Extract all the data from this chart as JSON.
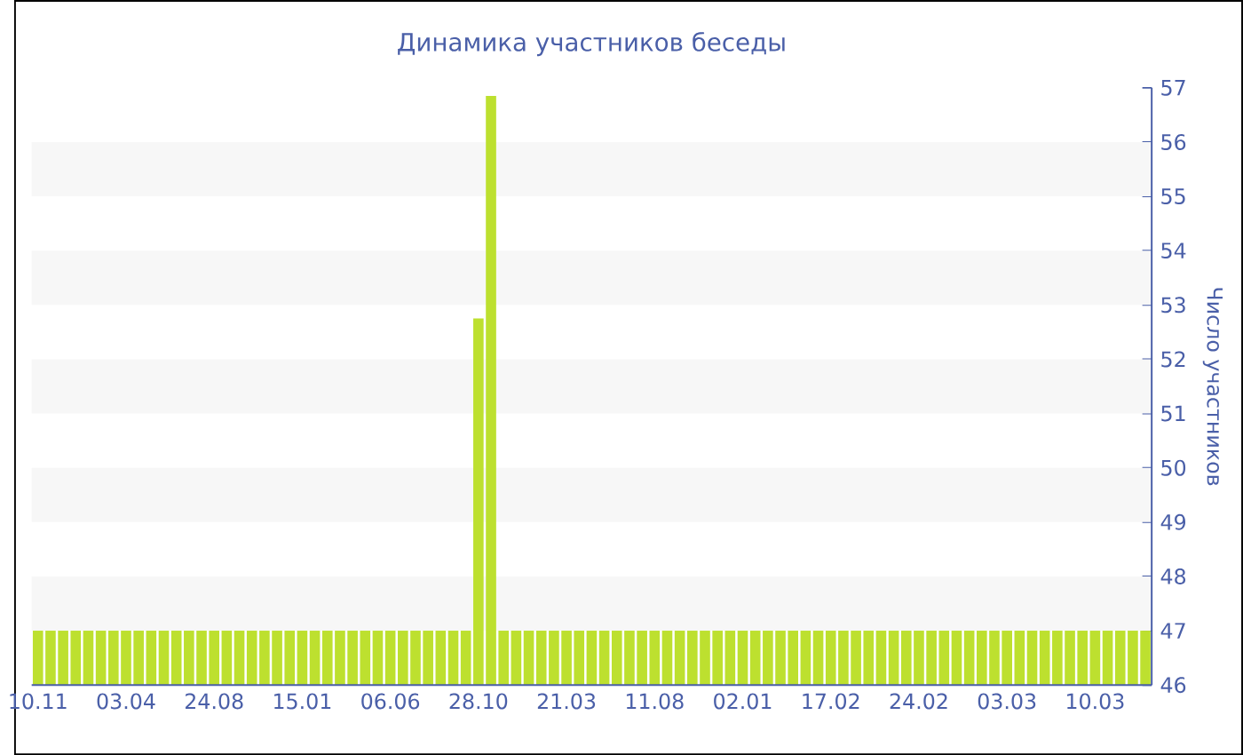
{
  "chart_data": {
    "type": "bar",
    "title": "Динамика участников беседы",
    "ylabel": "Число участников",
    "categories": [
      "10.11",
      null,
      null,
      null,
      null,
      null,
      null,
      "03.04",
      null,
      null,
      null,
      null,
      null,
      null,
      "24.08",
      null,
      null,
      null,
      null,
      null,
      null,
      "15.01",
      null,
      null,
      null,
      null,
      null,
      null,
      "06.06",
      null,
      null,
      null,
      null,
      null,
      null,
      "28.10",
      null,
      null,
      null,
      null,
      null,
      null,
      "21.03",
      null,
      null,
      null,
      null,
      null,
      null,
      "11.08",
      null,
      null,
      null,
      null,
      null,
      null,
      "02.01",
      null,
      null,
      null,
      null,
      null,
      null,
      "17.02",
      null,
      null,
      null,
      null,
      null,
      null,
      "24.02",
      null,
      null,
      null,
      null,
      null,
      null,
      "03.03",
      null,
      null,
      null,
      null,
      null,
      null,
      "10.03",
      null,
      null,
      null,
      null
    ],
    "values": [
      47,
      47,
      47,
      47,
      47,
      47,
      47,
      47,
      47,
      47,
      47,
      47,
      47,
      47,
      47,
      47,
      47,
      47,
      47,
      47,
      47,
      47,
      47,
      47,
      47,
      47,
      47,
      47,
      47,
      47,
      47,
      47,
      47,
      47,
      47,
      52.75,
      56.85,
      47,
      47,
      47,
      47,
      47,
      47,
      47,
      47,
      47,
      47,
      47,
      47,
      47,
      47,
      47,
      47,
      47,
      47,
      47,
      47,
      47,
      47,
      47,
      47,
      47,
      47,
      47,
      47,
      47,
      47,
      47,
      47,
      47,
      47,
      47,
      47,
      47,
      47,
      47,
      47,
      47,
      47,
      47,
      47,
      47,
      47,
      47,
      47,
      47,
      47,
      47,
      47
    ],
    "color": "#bde02f",
    "ylim": [
      46,
      57
    ],
    "yticks": [
      46,
      47,
      48,
      49,
      50,
      51,
      52,
      53,
      54,
      55,
      56,
      57
    ],
    "bands": [
      {
        "axis": "y",
        "from": 47,
        "to": 48,
        "color": "#f7f7f7"
      },
      {
        "axis": "y",
        "from": 49,
        "to": 50,
        "color": "#f7f7f7"
      },
      {
        "axis": "y",
        "from": 51,
        "to": 52,
        "color": "#f7f7f7"
      },
      {
        "axis": "y",
        "from": 53,
        "to": 54,
        "color": "#f7f7f7"
      },
      {
        "axis": "y",
        "from": 55,
        "to": 56,
        "color": "#f7f7f7"
      }
    ]
  }
}
